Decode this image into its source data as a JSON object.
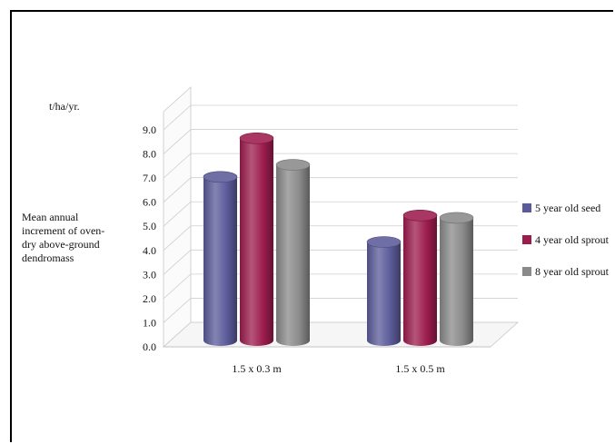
{
  "chart_data": {
    "type": "bar",
    "style": "3d-cylinder",
    "unit_label": "t/ha/yr.",
    "ylabel_lines": [
      "Mean annual",
      "increment of oven-",
      "dry above-ground",
      "dendromass"
    ],
    "categories": [
      "1.5 x 0.3 m",
      "1.5 x 0.5 m"
    ],
    "series": [
      {
        "name": "5 year old seed",
        "color": "#5b5b9a",
        "values": [
          7.2,
          4.5
        ]
      },
      {
        "name": "4 year old sprout",
        "color": "#9c1c4e",
        "values": [
          8.8,
          5.6
        ]
      },
      {
        "name": "8 year old sprout",
        "color": "#8a8a8a",
        "values": [
          7.7,
          5.5
        ]
      }
    ],
    "yticks": [
      "0.0",
      "1.0",
      "2.0",
      "3.0",
      "4.0",
      "5.0",
      "6.0",
      "7.0",
      "8.0",
      "9.0"
    ],
    "ylim": [
      0,
      9
    ],
    "grid": true,
    "legend_position": "right"
  }
}
